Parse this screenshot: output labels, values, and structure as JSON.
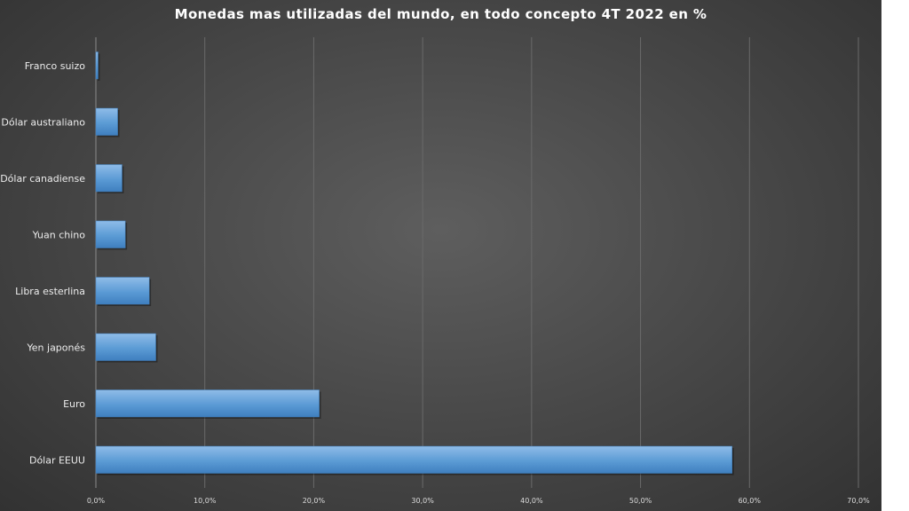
{
  "chart_data": {
    "type": "bar",
    "orientation": "horizontal",
    "title": "Monedas mas utilizadas del mundo, en todo concepto 4T 2022 en %",
    "categories": [
      "Franco suizo",
      "Dólar australiano",
      "Dólar canadiense",
      "Yuan chino",
      "Libra esterlina",
      "Yen japonés",
      "Euro",
      "Dólar EEUU"
    ],
    "values": [
      0.2,
      2.0,
      2.4,
      2.7,
      4.9,
      5.5,
      20.5,
      58.4
    ],
    "xlim": [
      0,
      70
    ],
    "xticks": [
      "0,0%",
      "10,0%",
      "20,0%",
      "30,0%",
      "40,0%",
      "50,0%",
      "60,0%",
      "70,0%"
    ],
    "xlabel": "",
    "ylabel": "",
    "grid": "vertical",
    "legend": "none",
    "colors": {
      "bar": "#5b9bd5",
      "bar_light": "#8fbce8",
      "bar_dark": "#3f7fbf",
      "gridline": "#6a6a6a",
      "text": "#ffffff"
    }
  }
}
